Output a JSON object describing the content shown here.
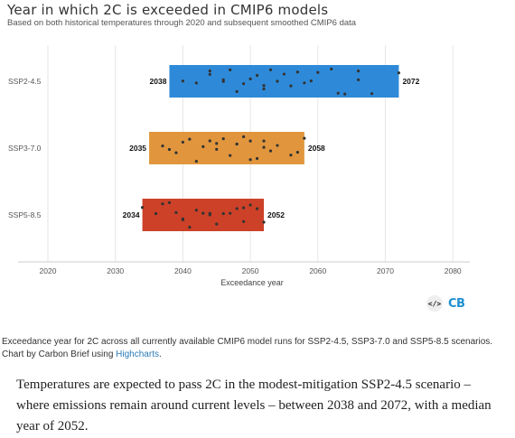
{
  "chart_data": {
    "type": "range-bar",
    "title": "Year in which 2C is exceeded in CMIP6 models",
    "subtitle": "Based on both historical temperatures through 2020 and subsequent smoothed CMIP6 data",
    "xlabel": "Exceedance year",
    "xlim": [
      2015,
      2085
    ],
    "xticks": [
      2020,
      2030,
      2040,
      2050,
      2060,
      2070,
      2080
    ],
    "categories": [
      "SSP2-4.5",
      "SSP3-7.0",
      "SSP5-8.5"
    ],
    "series": [
      {
        "category": "SSP2-4.5",
        "low": 2038,
        "high": 2072,
        "color": "#2e8ad8",
        "points": [
          2040,
          2042,
          2044,
          2044,
          2046,
          2046,
          2047,
          2048,
          2049,
          2050,
          2051,
          2052,
          2052,
          2053,
          2054,
          2055,
          2056,
          2057,
          2058,
          2059,
          2060,
          2062,
          2063,
          2064,
          2066,
          2066,
          2068,
          2072
        ]
      },
      {
        "category": "SSP3-7.0",
        "low": 2035,
        "high": 2058,
        "color": "#e1963e",
        "points": [
          2037,
          2038,
          2039,
          2040,
          2041,
          2042,
          2043,
          2044,
          2045,
          2045,
          2046,
          2047,
          2048,
          2048,
          2049,
          2050,
          2050,
          2051,
          2052,
          2052,
          2053,
          2054,
          2056,
          2057,
          2058
        ]
      },
      {
        "category": "SSP5-8.5",
        "low": 2034,
        "high": 2052,
        "color": "#cc4128",
        "points": [
          2034,
          2036,
          2037,
          2038,
          2039,
          2040,
          2040,
          2041,
          2042,
          2043,
          2044,
          2044,
          2045,
          2046,
          2047,
          2048,
          2049,
          2049,
          2050,
          2051,
          2052
        ]
      }
    ],
    "grid": "vertical",
    "legend": "none"
  },
  "logo": {
    "code_icon": "</>",
    "brand": "CB"
  },
  "caption": {
    "text": "Exceedance year for 2C across all currently available CMIP6 model runs for SSP2-4.5, SSP3-7.0 and SSP5-8.5 scenarios. Chart by Carbon Brief using ",
    "link": "Highcharts",
    "end": "."
  },
  "body_text": "Temperatures are expected to pass 2C in the modest-mitigation SSP2-4.5 scenario – where emissions remain around current levels – between 2038 and 2072, with a median year of 2052."
}
